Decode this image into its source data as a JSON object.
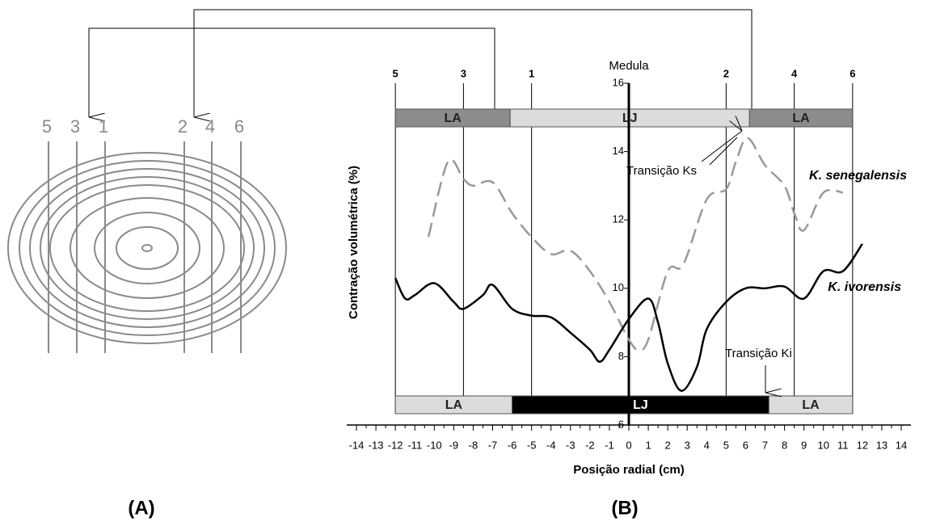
{
  "figure_a": {
    "line_labels": [
      "5",
      "3",
      "1",
      "2",
      "4",
      "6"
    ]
  },
  "panel_labels": [
    "(A)",
    "(B)"
  ],
  "chart_data": {
    "type": "line",
    "xlabel": "Posição radial (cm)",
    "ylabel": "Contração volumétrica (%)",
    "xlim": [
      -14,
      14
    ],
    "xticks": [
      -14,
      -13,
      -12,
      -11,
      -10,
      -9,
      -8,
      -7,
      -6,
      -5,
      -4,
      -3,
      -2,
      -1,
      0,
      1,
      2,
      3,
      4,
      5,
      6,
      7,
      8,
      9,
      10,
      11,
      12,
      13,
      14
    ],
    "ylim": [
      6,
      16
    ],
    "yticks": [
      6,
      8,
      10,
      12,
      14,
      16
    ],
    "axis_label": "Medula",
    "series": [
      {
        "name": "K. senegalensis",
        "color": "#999999",
        "dashed": true,
        "x": [
          -10.3,
          -9.3,
          -8.5,
          -8,
          -7,
          -6,
          -5,
          -4,
          -3,
          -2,
          -1,
          0,
          0.5,
          1,
          2,
          2.8,
          4,
          5,
          5.5,
          6.1,
          7,
          8,
          8.5,
          9,
          10,
          11
        ],
        "values": [
          11.5,
          13.7,
          13.2,
          13.0,
          13.1,
          12.2,
          11.5,
          11.0,
          11.1,
          10.5,
          9.6,
          8.5,
          8.2,
          8.5,
          10.5,
          10.7,
          12.6,
          12.9,
          13.7,
          14.4,
          13.6,
          13.0,
          12.2,
          11.7,
          12.8,
          12.8
        ]
      },
      {
        "name": "K. ivorensis",
        "color": "#000000",
        "dashed": false,
        "x": [
          -12,
          -11.5,
          -11,
          -10,
          -9,
          -8.5,
          -7.5,
          -7,
          -6,
          -5,
          -4,
          -3,
          -2,
          -1.5,
          -1,
          0,
          1,
          1.5,
          2,
          2.7,
          3.5,
          4,
          5,
          6,
          7,
          8,
          9,
          10,
          11,
          12
        ],
        "values": [
          10.3,
          9.7,
          9.8,
          10.15,
          9.6,
          9.4,
          9.8,
          10.1,
          9.4,
          9.2,
          9.15,
          8.7,
          8.2,
          7.85,
          8.2,
          9.1,
          9.7,
          9.0,
          7.8,
          7.0,
          7.7,
          8.8,
          9.6,
          10.0,
          10.0,
          10.05,
          9.7,
          10.5,
          10.5,
          11.3
        ]
      }
    ],
    "markers": [
      {
        "label": "5",
        "x": -12
      },
      {
        "label": "3",
        "x": -8.5
      },
      {
        "label": "1",
        "x": -5
      },
      {
        "label": "2",
        "x": 5
      },
      {
        "label": "4",
        "x": 8.5
      },
      {
        "label": "6",
        "x": 11.5
      }
    ],
    "bands_top": [
      {
        "label": "LA",
        "start": -12,
        "end": -6.1,
        "color": "#8c8c8c"
      },
      {
        "label": "LJ",
        "start": -6.1,
        "end": 6.2,
        "color": "#dcdcdc"
      },
      {
        "label": "LA",
        "start": 6.2,
        "end": 11.5,
        "color": "#8c8c8c"
      }
    ],
    "bands_bottom": [
      {
        "label": "LA",
        "start": -12,
        "end": -6,
        "color": "#dcdcdc"
      },
      {
        "label": "LJ",
        "start": -6,
        "end": 7.2,
        "color": "#000000"
      },
      {
        "label": "LA",
        "start": 7.2,
        "end": 11.5,
        "color": "#dcdcdc"
      }
    ],
    "annotations": [
      "Transição Ks",
      "Transição Ki"
    ]
  }
}
